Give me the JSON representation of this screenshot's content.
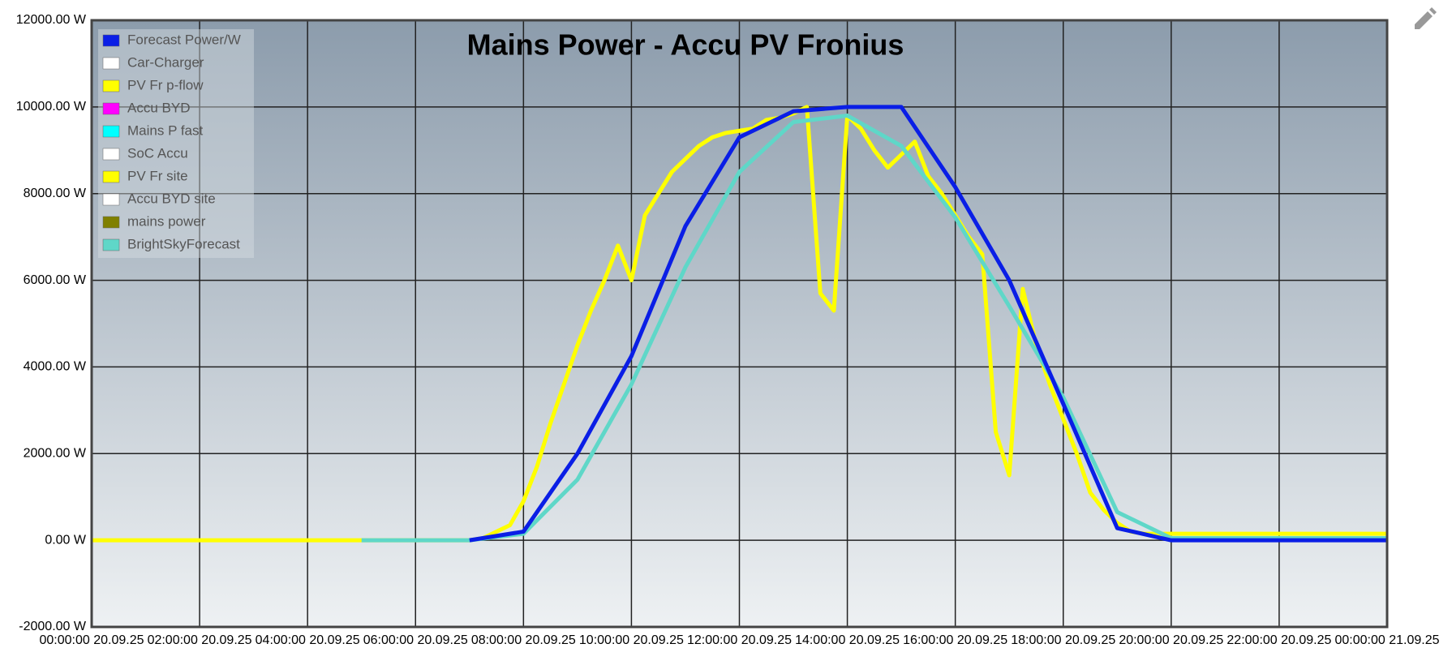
{
  "chart_data": {
    "type": "line",
    "title": "Mains Power - Accu PV Fronius",
    "xlim": [
      0,
      24
    ],
    "xticks": [
      {
        "value": 0,
        "label": "00:00:00 20.09.25"
      },
      {
        "value": 2,
        "label": "02:00:00 20.09.25"
      },
      {
        "value": 4,
        "label": "04:00:00 20.09.25"
      },
      {
        "value": 6,
        "label": "06:00:00 20.09.25"
      },
      {
        "value": 8,
        "label": "08:00:00 20.09.25"
      },
      {
        "value": 10,
        "label": "10:00:00 20.09.25"
      },
      {
        "value": 12,
        "label": "12:00:00 20.09.25"
      },
      {
        "value": 14,
        "label": "14:00:00 20.09.25"
      },
      {
        "value": 16,
        "label": "16:00:00 20.09.25"
      },
      {
        "value": 18,
        "label": "18:00:00 20.09.25"
      },
      {
        "value": 20,
        "label": "20:00:00 20.09.25"
      },
      {
        "value": 22,
        "label": "22:00:00 20.09.25"
      },
      {
        "value": 24,
        "label": "00:00:00 21.09.25"
      }
    ],
    "ylim": [
      -2000,
      12000
    ],
    "yticks": [
      {
        "value": -2000,
        "label": "-2000.00 W"
      },
      {
        "value": 0,
        "label": "0.00 W"
      },
      {
        "value": 2000,
        "label": "2000.00 W"
      },
      {
        "value": 4000,
        "label": "4000.00 W"
      },
      {
        "value": 6000,
        "label": "6000.00 W"
      },
      {
        "value": 8000,
        "label": "8000.00 W"
      },
      {
        "value": 10000,
        "label": "10000.00 W"
      },
      {
        "value": 12000,
        "label": "12000.00 W"
      }
    ],
    "grid": true,
    "legend": "top-left",
    "series": [
      {
        "name": "Forecast Power/W",
        "color": "#0a1ee6",
        "x": [
          7,
          8,
          9,
          10,
          11,
          12,
          13,
          14,
          15,
          16,
          17,
          18,
          19,
          20,
          24
        ],
        "values": [
          0,
          200,
          2000,
          4250,
          7250,
          9300,
          9900,
          10000,
          10000,
          8150,
          6000,
          3150,
          280,
          0,
          0
        ]
      },
      {
        "name": "Car-Charger",
        "color": "#ffffff",
        "x": [],
        "values": []
      },
      {
        "name": "PV Fr p-flow",
        "color": "#ffff00",
        "x": [],
        "values": []
      },
      {
        "name": "Accu BYD",
        "color": "#ff00ff",
        "x": [],
        "values": []
      },
      {
        "name": "Mains P fast",
        "color": "#00ffff",
        "x": [],
        "values": []
      },
      {
        "name": "SoC Accu",
        "color": "#ffffff",
        "x": [],
        "values": []
      },
      {
        "name": "PV Fr site",
        "color": "#ffff00",
        "x": [
          0,
          0.25,
          0.5,
          0.75,
          1,
          1.25,
          1.5,
          1.75,
          2,
          2.25,
          2.5,
          2.75,
          3,
          3.25,
          3.5,
          3.75,
          4,
          4.25,
          4.5,
          4.75,
          5,
          5.25,
          5.5,
          5.75,
          6,
          6.25,
          6.5,
          6.75,
          7,
          7.25,
          7.5,
          7.75,
          8,
          8.25,
          8.5,
          8.75,
          9,
          9.25,
          9.5,
          9.75,
          10,
          10.25,
          10.5,
          10.75,
          11,
          11.25,
          11.5,
          11.75,
          12,
          12.25,
          12.5,
          12.75,
          13,
          13.25,
          13.5,
          13.75,
          14,
          14.25,
          14.5,
          14.75,
          15,
          15.25,
          15.5,
          15.75,
          16,
          16.25,
          16.5,
          16.75,
          17,
          17.25,
          17.5,
          17.75,
          18,
          18.25,
          18.5,
          18.75,
          19,
          19.25,
          19.5,
          19.75,
          20,
          20.25,
          20.5,
          20.75,
          21,
          21.25,
          21.5,
          21.75,
          22,
          22.25,
          22.5,
          22.75,
          23,
          23.25,
          23.5,
          23.75,
          24
        ],
        "values": [
          0,
          0,
          0,
          0,
          0,
          0,
          0,
          0,
          0,
          0,
          0,
          0,
          0,
          0,
          0,
          0,
          0,
          0,
          0,
          0,
          0,
          0,
          0,
          0,
          0,
          0,
          0,
          0,
          0,
          50,
          200,
          350,
          900,
          1700,
          2700,
          3600,
          4500,
          5300,
          6000,
          6800,
          6000,
          7500,
          8000,
          8500,
          8800,
          9100,
          9300,
          9400,
          9450,
          9500,
          9700,
          9750,
          9850,
          10000,
          5700,
          5300,
          9800,
          9500,
          9000,
          8600,
          8900,
          9200,
          8400,
          8000,
          7500,
          7000,
          6600,
          2500,
          1500,
          5800,
          4500,
          3600,
          2800,
          2000,
          1100,
          700,
          400,
          200,
          150,
          150,
          150,
          150,
          150,
          150,
          150,
          150,
          150,
          150,
          150,
          150,
          150,
          150,
          150,
          150,
          150,
          150,
          150
        ]
      },
      {
        "name": "Accu BYD site",
        "color": "#ffffff",
        "x": [],
        "values": []
      },
      {
        "name": "mains power",
        "color": "#808000",
        "x": [],
        "values": []
      },
      {
        "name": "BrightSkyForecast",
        "color": "#5fd7c8",
        "x": [
          5,
          7,
          8,
          9,
          10,
          11,
          12,
          13,
          14,
          15,
          16,
          17,
          18,
          19,
          20,
          24
        ],
        "values": [
          0,
          0,
          150,
          1400,
          3600,
          6300,
          8500,
          9650,
          9800,
          9100,
          7450,
          5400,
          3300,
          650,
          50,
          50
        ]
      }
    ]
  }
}
